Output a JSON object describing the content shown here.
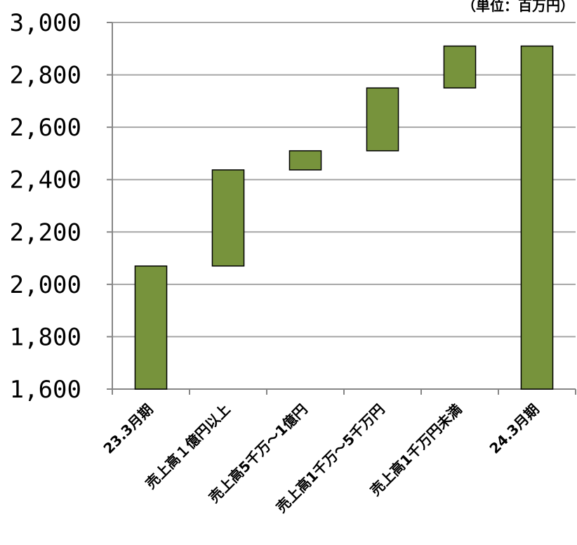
{
  "unit_note": "（単位：百万円）",
  "colors": {
    "bar": "#77933C",
    "bar_stroke": "#000000",
    "grid": "#A6A6A6",
    "axis": "#868686"
  },
  "chart_data": {
    "type": "bar",
    "variant": "waterfall",
    "title": "",
    "xlabel": "",
    "ylabel": "",
    "ylim": [
      1600,
      3000
    ],
    "yticks": [
      1600,
      1800,
      2000,
      2200,
      2400,
      2600,
      2800,
      3000
    ],
    "ytick_labels": [
      "1,600",
      "1,800",
      "2,000",
      "2,200",
      "2,400",
      "2,600",
      "2,800",
      "3,000"
    ],
    "grid": true,
    "categories": [
      "23.3月期",
      "売上高１億円以上",
      "売上高5千万～1億円",
      "売上高1千万～5千万円",
      "売上高1千万円未満",
      "24.3月期"
    ],
    "bars": [
      {
        "start": 1600,
        "end": 2070
      },
      {
        "start": 2070,
        "end": 2437
      },
      {
        "start": 2437,
        "end": 2510
      },
      {
        "start": 2510,
        "end": 2750
      },
      {
        "start": 2750,
        "end": 2910
      },
      {
        "start": 1600,
        "end": 2910
      }
    ]
  }
}
